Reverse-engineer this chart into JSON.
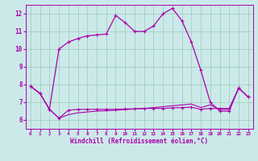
{
  "xlabel": "Windchill (Refroidissement éolien,°C)",
  "xlim": [
    -0.5,
    23.5
  ],
  "ylim": [
    5.5,
    12.5
  ],
  "yticks": [
    6,
    7,
    8,
    9,
    10,
    11,
    12
  ],
  "xticks": [
    0,
    1,
    2,
    3,
    4,
    5,
    6,
    7,
    8,
    9,
    10,
    11,
    12,
    13,
    14,
    15,
    16,
    17,
    18,
    19,
    20,
    21,
    22,
    23
  ],
  "bg_color": "#cce9e9",
  "line_color": "#aa00aa",
  "grid_color": "#99ccbb",
  "line1_x": [
    0,
    1,
    2,
    3,
    4,
    5,
    6,
    7,
    8,
    9,
    10,
    11,
    12,
    13,
    14,
    15,
    16,
    17,
    18,
    19,
    20,
    21,
    22,
    23
  ],
  "line1_y": [
    7.9,
    7.5,
    6.6,
    10.0,
    10.4,
    10.6,
    10.75,
    10.8,
    10.85,
    11.9,
    11.5,
    11.0,
    11.0,
    11.3,
    12.0,
    12.3,
    11.6,
    10.4,
    8.8,
    7.0,
    6.5,
    6.5,
    7.8,
    7.3
  ],
  "line2_x": [
    0,
    1,
    2,
    3,
    4,
    5,
    6,
    7,
    8,
    9,
    10,
    11,
    12,
    13,
    14,
    15,
    16,
    17,
    18,
    19,
    20,
    21,
    22,
    23
  ],
  "line2_y": [
    7.9,
    7.5,
    6.6,
    6.1,
    6.55,
    6.6,
    6.6,
    6.6,
    6.6,
    6.6,
    6.62,
    6.63,
    6.65,
    6.65,
    6.65,
    6.68,
    6.7,
    6.72,
    6.6,
    6.65,
    6.65,
    6.65,
    7.8,
    7.3
  ],
  "line3_x": [
    0,
    1,
    2,
    3,
    4,
    5,
    6,
    7,
    8,
    9,
    10,
    11,
    12,
    13,
    14,
    15,
    16,
    17,
    18,
    19,
    20,
    21,
    22,
    23
  ],
  "line3_y": [
    7.9,
    7.5,
    6.6,
    6.1,
    6.3,
    6.4,
    6.45,
    6.5,
    6.52,
    6.55,
    6.58,
    6.62,
    6.65,
    6.7,
    6.75,
    6.8,
    6.85,
    6.9,
    6.7,
    6.85,
    6.6,
    6.6,
    7.8,
    7.3
  ]
}
